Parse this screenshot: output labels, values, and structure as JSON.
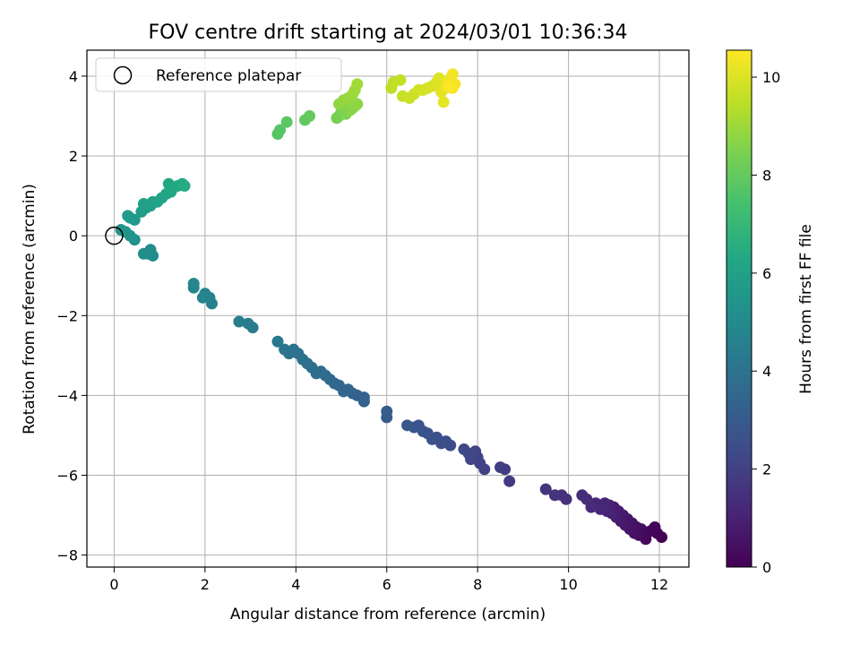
{
  "chart_data": {
    "type": "scatter",
    "title": "FOV centre drift starting at 2024/03/01 10:36:34",
    "xlabel": "Angular distance from reference (arcmin)",
    "ylabel": "Rotation from reference (arcmin)",
    "xlim": [
      -0.6,
      12.65
    ],
    "ylim": [
      -8.3,
      4.65
    ],
    "xticks": [
      "0",
      "2",
      "4",
      "6",
      "8",
      "10",
      "12"
    ],
    "yticks": [
      "−8",
      "−6",
      "−4",
      "−2",
      "0",
      "2",
      "4"
    ],
    "grid": true,
    "legend": {
      "placement": "top-left",
      "entries": [
        "Reference platepar"
      ]
    },
    "reference": {
      "x": 0,
      "y": 0
    },
    "colormap": "viridis",
    "colorbar": {
      "label": "Hours from first FF file",
      "range": [
        0,
        10.55
      ],
      "ticks": [
        "0",
        "2",
        "4",
        "6",
        "8",
        "10"
      ]
    },
    "points": [
      [
        12.05,
        -7.55,
        0.0
      ],
      [
        11.95,
        -7.45,
        0.05
      ],
      [
        11.9,
        -7.3,
        0.1
      ],
      [
        11.8,
        -7.4,
        0.15
      ],
      [
        11.7,
        -7.6,
        0.2
      ],
      [
        11.65,
        -7.5,
        0.25
      ],
      [
        11.6,
        -7.35,
        0.3
      ],
      [
        11.55,
        -7.5,
        0.35
      ],
      [
        11.5,
        -7.3,
        0.4
      ],
      [
        11.45,
        -7.45,
        0.45
      ],
      [
        11.4,
        -7.2,
        0.5
      ],
      [
        11.35,
        -7.35,
        0.55
      ],
      [
        11.3,
        -7.1,
        0.6
      ],
      [
        11.25,
        -7.25,
        0.65
      ],
      [
        11.2,
        -7.0,
        0.7
      ],
      [
        11.15,
        -7.15,
        0.75
      ],
      [
        11.1,
        -6.9,
        0.8
      ],
      [
        11.05,
        -7.05,
        0.85
      ],
      [
        11.0,
        -6.8,
        0.9
      ],
      [
        10.95,
        -6.95,
        0.95
      ],
      [
        10.9,
        -6.75,
        1.0
      ],
      [
        10.85,
        -6.9,
        1.05
      ],
      [
        10.8,
        -6.7,
        1.1
      ],
      [
        10.7,
        -6.85,
        1.15
      ],
      [
        10.6,
        -6.7,
        1.2
      ],
      [
        10.5,
        -6.8,
        1.25
      ],
      [
        10.4,
        -6.6,
        1.3
      ],
      [
        10.3,
        -6.5,
        1.35
      ],
      [
        9.95,
        -6.6,
        1.45
      ],
      [
        9.85,
        -6.5,
        1.5
      ],
      [
        9.7,
        -6.5,
        1.55
      ],
      [
        9.5,
        -6.35,
        1.6
      ],
      [
        8.7,
        -6.15,
        1.8
      ],
      [
        8.6,
        -5.85,
        1.85
      ],
      [
        8.5,
        -5.8,
        1.9
      ],
      [
        8.15,
        -5.85,
        2.0
      ],
      [
        8.05,
        -5.7,
        2.05
      ],
      [
        8.0,
        -5.55,
        2.1
      ],
      [
        7.95,
        -5.4,
        2.15
      ],
      [
        7.85,
        -5.6,
        2.2
      ],
      [
        7.8,
        -5.45,
        2.25
      ],
      [
        7.7,
        -5.35,
        2.3
      ],
      [
        7.4,
        -5.25,
        2.4
      ],
      [
        7.3,
        -5.15,
        2.45
      ],
      [
        7.2,
        -5.2,
        2.5
      ],
      [
        7.1,
        -5.05,
        2.55
      ],
      [
        7.0,
        -5.1,
        2.6
      ],
      [
        6.9,
        -4.95,
        2.65
      ],
      [
        6.8,
        -4.9,
        2.7
      ],
      [
        6.7,
        -4.75,
        2.75
      ],
      [
        6.6,
        -4.8,
        2.8
      ],
      [
        6.45,
        -4.75,
        2.85
      ],
      [
        6.0,
        -4.55,
        3.0
      ],
      [
        6.0,
        -4.4,
        3.05
      ],
      [
        5.5,
        -4.15,
        3.2
      ],
      [
        5.5,
        -4.05,
        3.25
      ],
      [
        5.35,
        -4.0,
        3.3
      ],
      [
        5.25,
        -3.95,
        3.35
      ],
      [
        5.15,
        -3.85,
        3.4
      ],
      [
        5.05,
        -3.9,
        3.45
      ],
      [
        4.95,
        -3.75,
        3.5
      ],
      [
        4.85,
        -3.7,
        3.55
      ],
      [
        4.75,
        -3.6,
        3.6
      ],
      [
        4.65,
        -3.5,
        3.65
      ],
      [
        4.55,
        -3.4,
        3.7
      ],
      [
        4.45,
        -3.45,
        3.75
      ],
      [
        4.35,
        -3.3,
        3.8
      ],
      [
        4.25,
        -3.2,
        3.85
      ],
      [
        4.15,
        -3.1,
        3.9
      ],
      [
        4.05,
        -2.95,
        3.95
      ],
      [
        3.95,
        -2.85,
        4.0
      ],
      [
        3.85,
        -2.95,
        4.05
      ],
      [
        3.75,
        -2.85,
        4.1
      ],
      [
        3.6,
        -2.65,
        4.2
      ],
      [
        3.05,
        -2.3,
        4.35
      ],
      [
        2.95,
        -2.2,
        4.4
      ],
      [
        2.75,
        -2.15,
        4.45
      ],
      [
        2.15,
        -1.7,
        4.6
      ],
      [
        2.1,
        -1.55,
        4.65
      ],
      [
        2.0,
        -1.45,
        4.7
      ],
      [
        1.95,
        -1.55,
        4.75
      ],
      [
        1.75,
        -1.3,
        4.8
      ],
      [
        1.75,
        -1.2,
        4.85
      ],
      [
        0.85,
        -0.5,
        5.0
      ],
      [
        0.8,
        -0.35,
        5.05
      ],
      [
        0.75,
        -0.45,
        5.1
      ],
      [
        0.65,
        -0.45,
        5.15
      ],
      [
        0.45,
        -0.1,
        5.3
      ],
      [
        0.35,
        0.0,
        5.35
      ],
      [
        0.25,
        0.1,
        5.4
      ],
      [
        0.15,
        0.15,
        5.45
      ],
      [
        0.45,
        0.4,
        5.6
      ],
      [
        0.35,
        0.45,
        5.65
      ],
      [
        0.3,
        0.5,
        5.7
      ],
      [
        0.6,
        0.6,
        5.8
      ],
      [
        0.7,
        0.7,
        5.85
      ],
      [
        0.65,
        0.8,
        5.9
      ],
      [
        0.8,
        0.75,
        5.95
      ],
      [
        0.85,
        0.85,
        6.0
      ],
      [
        0.95,
        0.85,
        6.05
      ],
      [
        1.05,
        0.95,
        6.1
      ],
      [
        1.15,
        1.05,
        6.15
      ],
      [
        1.25,
        1.1,
        6.2
      ],
      [
        1.3,
        1.2,
        6.25
      ],
      [
        1.2,
        1.3,
        6.3
      ],
      [
        1.4,
        1.25,
        6.35
      ],
      [
        1.5,
        1.3,
        6.4
      ],
      [
        1.55,
        1.25,
        6.45
      ],
      [
        3.6,
        2.55,
        7.7
      ],
      [
        3.65,
        2.65,
        7.75
      ],
      [
        3.8,
        2.85,
        7.85
      ],
      [
        4.2,
        2.9,
        7.95
      ],
      [
        4.3,
        3.0,
        8.0
      ],
      [
        4.9,
        2.95,
        8.3
      ],
      [
        4.95,
        3.0,
        8.35
      ],
      [
        5.0,
        3.1,
        8.4
      ],
      [
        5.05,
        3.2,
        8.45
      ],
      [
        5.1,
        3.05,
        8.5
      ],
      [
        5.15,
        3.3,
        8.55
      ],
      [
        5.2,
        3.15,
        8.6
      ],
      [
        5.25,
        3.2,
        8.65
      ],
      [
        5.3,
        3.25,
        8.7
      ],
      [
        5.35,
        3.3,
        8.75
      ],
      [
        4.95,
        3.3,
        8.8
      ],
      [
        5.05,
        3.4,
        8.85
      ],
      [
        5.15,
        3.45,
        8.9
      ],
      [
        5.25,
        3.55,
        8.95
      ],
      [
        5.3,
        3.65,
        9.0
      ],
      [
        5.35,
        3.8,
        9.05
      ],
      [
        6.1,
        3.7,
        9.5
      ],
      [
        6.15,
        3.85,
        9.55
      ],
      [
        6.3,
        3.9,
        9.6
      ],
      [
        6.35,
        3.5,
        9.65
      ],
      [
        6.5,
        3.45,
        9.7
      ],
      [
        6.6,
        3.55,
        9.75
      ],
      [
        6.7,
        3.65,
        9.8
      ],
      [
        6.8,
        3.65,
        9.85
      ],
      [
        6.9,
        3.7,
        9.9
      ],
      [
        7.0,
        3.75,
        9.95
      ],
      [
        7.1,
        3.85,
        10.0
      ],
      [
        7.15,
        3.95,
        10.05
      ],
      [
        7.2,
        3.6,
        10.1
      ],
      [
        7.25,
        3.35,
        10.15
      ],
      [
        7.3,
        3.7,
        10.2
      ],
      [
        7.35,
        3.85,
        10.25
      ],
      [
        7.4,
        3.95,
        10.3
      ],
      [
        7.45,
        4.05,
        10.35
      ],
      [
        7.5,
        3.8,
        10.4
      ],
      [
        7.45,
        3.7,
        10.45
      ],
      [
        7.35,
        3.75,
        10.5
      ]
    ]
  }
}
